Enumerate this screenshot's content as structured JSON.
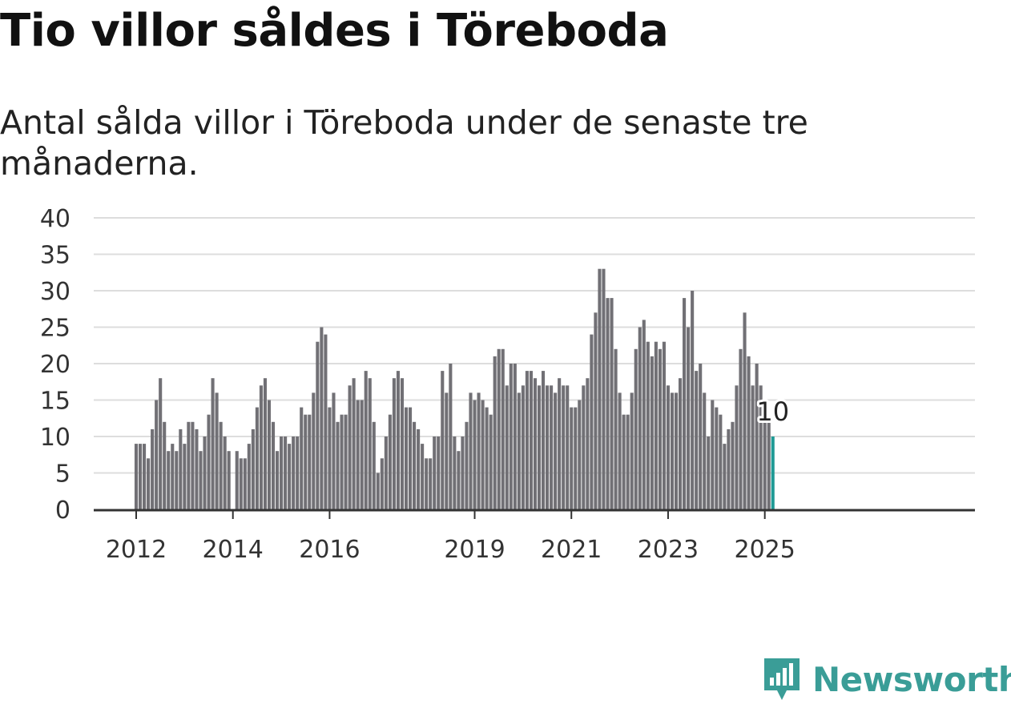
{
  "title": "Tio villor såldes i Töreboda",
  "subtitle": "Antal sålda villor i Töreboda under de senaste tre månaderna.",
  "brand": {
    "name": "Newsworthy",
    "color": "#3a9d97",
    "icon": "bar-chart-speech-bubble-icon"
  },
  "chart_data": {
    "type": "bar",
    "title": "",
    "xlabel": "",
    "ylabel": "",
    "ylim": [
      0,
      40
    ],
    "yticks": [
      "0",
      "5",
      "10",
      "15",
      "20",
      "25",
      "30",
      "35",
      "40"
    ],
    "grid": true,
    "bar_color": "#717075",
    "highlight_color": "#1f9a95",
    "x_start": "2012-01",
    "x_end": "2025-03",
    "xticks": [
      {
        "date": "2012-01",
        "label": "2012"
      },
      {
        "date": "2014-01",
        "label": "2014"
      },
      {
        "date": "2016-01",
        "label": "2016"
      },
      {
        "date": "2019-01",
        "label": "2019"
      },
      {
        "date": "2021-01",
        "label": "2021"
      },
      {
        "date": "2023-01",
        "label": "2023"
      },
      {
        "date": "2025-01",
        "label": "2025"
      }
    ],
    "values": [
      9,
      9,
      9,
      7,
      11,
      15,
      18,
      12,
      8,
      9,
      8,
      11,
      9,
      12,
      12,
      11,
      8,
      10,
      13,
      18,
      16,
      12,
      10,
      8,
      0,
      8,
      7,
      7,
      9,
      11,
      14,
      17,
      18,
      15,
      12,
      8,
      10,
      10,
      9,
      10,
      10,
      14,
      13,
      13,
      16,
      23,
      25,
      24,
      14,
      16,
      12,
      13,
      13,
      17,
      18,
      15,
      15,
      19,
      18,
      12,
      5,
      7,
      10,
      13,
      18,
      19,
      18,
      14,
      14,
      12,
      11,
      9,
      7,
      7,
      10,
      10,
      19,
      16,
      20,
      10,
      8,
      10,
      12,
      16,
      15,
      16,
      15,
      14,
      13,
      21,
      22,
      22,
      17,
      20,
      20,
      16,
      17,
      19,
      19,
      18,
      17,
      19,
      17,
      17,
      16,
      18,
      17,
      17,
      14,
      14,
      15,
      17,
      18,
      24,
      27,
      33,
      33,
      29,
      29,
      22,
      16,
      13,
      13,
      16,
      22,
      25,
      26,
      23,
      21,
      23,
      22,
      23,
      17,
      16,
      16,
      18,
      29,
      25,
      30,
      19,
      20,
      16,
      10,
      15,
      14,
      13,
      9,
      11,
      12,
      17,
      22,
      27,
      21,
      17,
      20,
      17,
      13,
      12,
      10
    ],
    "annotation": {
      "date": "2025-03",
      "value": 10,
      "label": "10"
    }
  }
}
